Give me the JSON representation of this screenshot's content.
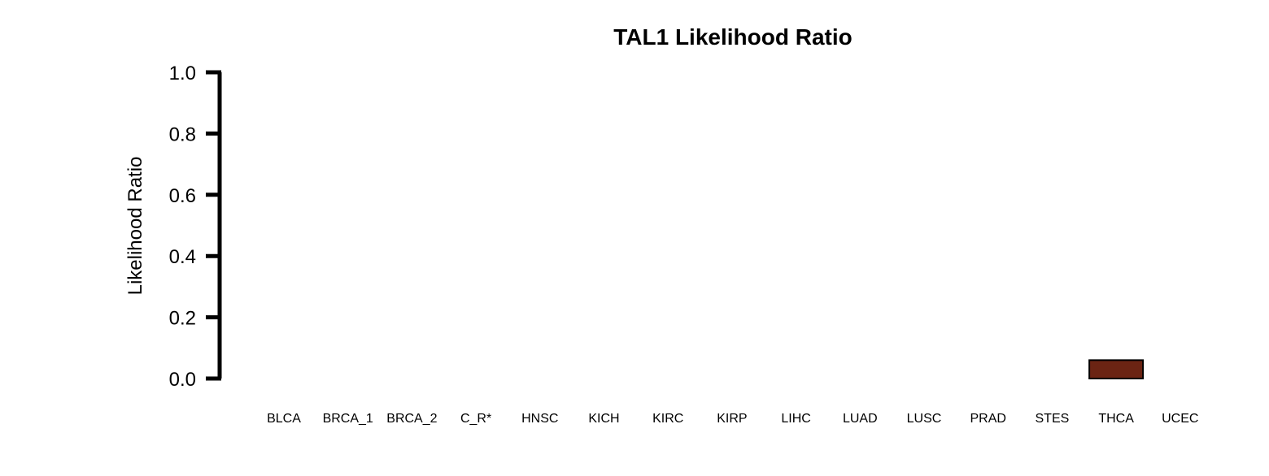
{
  "chart_data": {
    "type": "bar",
    "title": "TAL1 Likelihood Ratio",
    "xlabel": "",
    "ylabel": "Likelihood Ratio",
    "ylim": [
      0,
      1.0
    ],
    "yticks": [
      "0.0",
      "0.2",
      "0.4",
      "0.6",
      "0.8",
      "1.0"
    ],
    "categories": [
      "BLCA",
      "BRCA_1",
      "BRCA_2",
      "C_R*",
      "HNSC",
      "KICH",
      "KIRC",
      "KIRP",
      "LIHC",
      "LUAD",
      "LUSC",
      "PRAD",
      "STES",
      "THCA",
      "UCEC"
    ],
    "values": [
      0,
      0,
      0,
      0,
      0,
      0,
      0,
      0,
      0,
      0,
      0,
      0,
      0,
      0.06,
      0
    ],
    "bar_color": "#6b2413",
    "grid": false,
    "legend": "none"
  }
}
